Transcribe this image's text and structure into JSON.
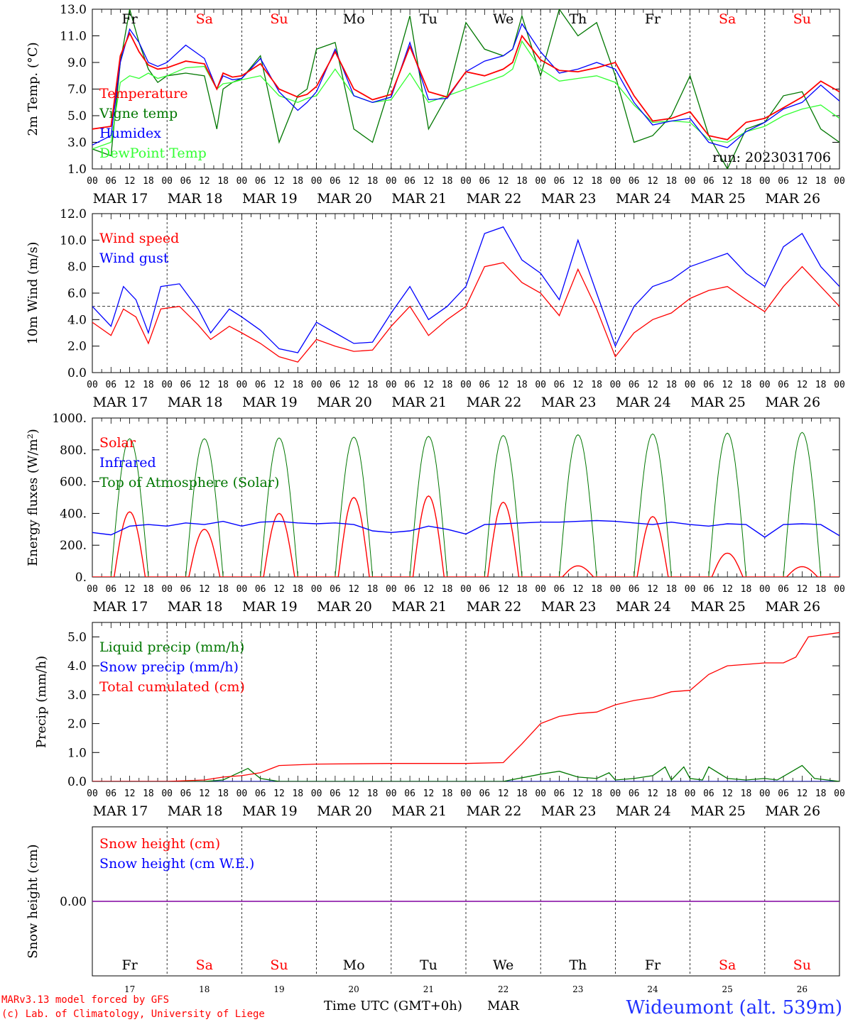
{
  "footer": {
    "model_line": "MARv3.13 model forced by GFS",
    "lab_line": "(c) Lab. of Climatology, University of Liege",
    "time_label": "Time UTC (GMT+0h)",
    "month": "MAR",
    "station": "Wideumont (alt. 539m)"
  },
  "days": [
    {
      "date": "MAR 17",
      "dom": "17",
      "weekday": "Fr",
      "weekend": false
    },
    {
      "date": "MAR 18",
      "dom": "18",
      "weekday": "Sa",
      "weekend": true
    },
    {
      "date": "MAR 19",
      "dom": "19",
      "weekday": "Su",
      "weekend": true
    },
    {
      "date": "MAR 20",
      "dom": "20",
      "weekday": "Mo",
      "weekend": false
    },
    {
      "date": "MAR 21",
      "dom": "21",
      "weekday": "Tu",
      "weekend": false
    },
    {
      "date": "MAR 22",
      "dom": "22",
      "weekday": "We",
      "weekend": false
    },
    {
      "date": "MAR 23",
      "dom": "23",
      "weekday": "Th",
      "weekend": false
    },
    {
      "date": "MAR 24",
      "dom": "24",
      "weekday": "Fr",
      "weekend": false
    },
    {
      "date": "MAR 25",
      "dom": "25",
      "weekday": "Sa",
      "weekend": true
    },
    {
      "date": "MAR 26",
      "dom": "26",
      "weekday": "Su",
      "weekend": true
    }
  ],
  "hour_ticks": [
    "00",
    "06",
    "12",
    "18"
  ],
  "end_tick": "00",
  "colors": {
    "red": "#ff0000",
    "green": "#007700",
    "blue": "#0000ff",
    "lime": "#33ff33",
    "purple": "#8000a0",
    "weekday": "#000000",
    "weekend": "#ff0000"
  },
  "chart_data": [
    {
      "type": "line",
      "ylabel": "2m Temp. (°C)",
      "ylim": [
        1.0,
        13.0
      ],
      "yticks": [
        "1.0",
        "3.0",
        "5.0",
        "7.0",
        "9.0",
        "11.0",
        "13.0"
      ],
      "run_label": "run: 2023031706",
      "x_unit": "hours since MAR 17 00 UTC",
      "series": [
        {
          "name": "Temperature",
          "color": "#ff0000",
          "x": [
            0,
            6,
            9,
            12,
            15,
            18,
            21,
            24,
            30,
            36,
            40,
            42,
            45,
            48,
            54,
            60,
            66,
            69,
            72,
            78,
            84,
            90,
            96,
            102,
            108,
            114,
            120,
            126,
            132,
            135,
            138,
            144,
            150,
            156,
            162,
            168,
            174,
            180,
            186,
            192,
            198,
            204,
            210,
            216,
            222,
            228,
            234,
            240
          ],
          "y": [
            4.0,
            4.2,
            9.5,
            11.2,
            9.8,
            8.8,
            8.5,
            8.6,
            9.1,
            8.9,
            7.0,
            8.2,
            7.9,
            8.0,
            8.9,
            7.0,
            6.4,
            6.6,
            7.2,
            9.8,
            7.0,
            6.2,
            6.6,
            10.2,
            6.8,
            6.4,
            8.3,
            8.0,
            8.5,
            9.0,
            11.0,
            9.2,
            8.4,
            8.3,
            8.6,
            9.0,
            6.5,
            4.6,
            4.8,
            5.3,
            3.5,
            3.2,
            4.5,
            4.8,
            5.6,
            6.4,
            7.6,
            6.8
          ]
        },
        {
          "name": "Vigne temp",
          "color": "#007700",
          "x": [
            0,
            6,
            9,
            12,
            15,
            18,
            21,
            24,
            30,
            36,
            40,
            42,
            45,
            48,
            54,
            60,
            66,
            69,
            72,
            78,
            84,
            90,
            96,
            102,
            108,
            114,
            120,
            126,
            132,
            135,
            138,
            144,
            150,
            156,
            162,
            168,
            174,
            180,
            186,
            192,
            198,
            204,
            210,
            216,
            222,
            228,
            234,
            240
          ],
          "y": [
            2.5,
            2.0,
            9.0,
            13.0,
            10.5,
            8.5,
            7.5,
            8.0,
            8.2,
            8.0,
            4.0,
            7.0,
            7.5,
            7.8,
            9.5,
            3.0,
            6.5,
            7.0,
            10.0,
            10.5,
            4.0,
            3.0,
            7.5,
            12.5,
            4.0,
            6.5,
            12.0,
            10.0,
            9.5,
            10.0,
            12.5,
            8.0,
            13.0,
            11.0,
            12.0,
            8.0,
            3.0,
            3.5,
            5.0,
            8.0,
            3.5,
            1.0,
            4.0,
            4.5,
            6.5,
            6.8,
            4.0,
            3.0
          ]
        },
        {
          "name": "Humidex",
          "color": "#0000ff",
          "x": [
            0,
            6,
            9,
            12,
            15,
            18,
            21,
            24,
            30,
            36,
            40,
            42,
            45,
            48,
            54,
            60,
            66,
            69,
            72,
            78,
            84,
            90,
            96,
            102,
            108,
            114,
            120,
            126,
            132,
            135,
            138,
            144,
            150,
            156,
            162,
            168,
            174,
            180,
            186,
            192,
            198,
            204,
            210,
            216,
            222,
            228,
            234,
            240
          ],
          "y": [
            2.8,
            3.5,
            9.0,
            11.5,
            10.5,
            9.0,
            8.7,
            9.0,
            10.3,
            9.3,
            7.0,
            8.0,
            7.7,
            7.8,
            9.3,
            6.8,
            5.4,
            6.0,
            6.8,
            10.0,
            6.5,
            6.0,
            6.4,
            10.5,
            6.2,
            6.3,
            8.3,
            9.1,
            9.5,
            10.0,
            11.9,
            9.8,
            8.2,
            8.5,
            9.0,
            8.5,
            6.0,
            4.3,
            4.6,
            4.8,
            3.0,
            2.6,
            3.8,
            4.5,
            5.5,
            6.0,
            7.3,
            6.1
          ]
        },
        {
          "name": "DewPoint Temp",
          "color": "#33ff33",
          "x": [
            0,
            6,
            9,
            12,
            15,
            18,
            21,
            24,
            30,
            36,
            40,
            42,
            45,
            48,
            54,
            60,
            66,
            69,
            72,
            78,
            84,
            90,
            96,
            102,
            108,
            114,
            120,
            126,
            132,
            135,
            138,
            144,
            150,
            156,
            162,
            168,
            174,
            180,
            186,
            192,
            198,
            204,
            210,
            216,
            222,
            228,
            234,
            240
          ],
          "y": [
            2.5,
            3.0,
            7.5,
            8.0,
            7.8,
            8.2,
            7.8,
            8.0,
            8.6,
            8.7,
            7.0,
            7.4,
            7.5,
            7.7,
            8.0,
            6.5,
            6.0,
            6.3,
            6.5,
            8.5,
            6.5,
            6.0,
            6.2,
            8.2,
            6.0,
            6.5,
            7.0,
            7.5,
            8.0,
            8.5,
            10.6,
            8.5,
            7.6,
            7.8,
            8.0,
            7.5,
            5.8,
            4.5,
            4.6,
            4.5,
            3.2,
            3.0,
            3.8,
            4.2,
            5.0,
            5.5,
            5.8,
            4.8
          ]
        }
      ]
    },
    {
      "type": "line",
      "ylabel": "10m Wind (m/s)",
      "ylim": [
        0.0,
        12.0
      ],
      "yticks": [
        "0.0",
        "2.0",
        "4.0",
        "6.0",
        "8.0",
        "10.0",
        "12.0"
      ],
      "ref_line": 5.0,
      "x_unit": "hours since MAR 17 00 UTC",
      "series": [
        {
          "name": "Wind speed",
          "color": "#ff0000",
          "x": [
            0,
            6,
            10,
            14,
            18,
            22,
            28,
            34,
            38,
            44,
            48,
            54,
            60,
            66,
            72,
            78,
            84,
            90,
            96,
            102,
            108,
            114,
            120,
            126,
            132,
            138,
            144,
            150,
            156,
            162,
            168,
            174,
            180,
            186,
            192,
            198,
            204,
            210,
            216,
            222,
            228,
            234,
            240
          ],
          "y": [
            3.8,
            2.8,
            4.8,
            4.2,
            2.2,
            4.8,
            5.0,
            3.6,
            2.5,
            3.5,
            3.0,
            2.2,
            1.2,
            0.8,
            2.5,
            2.0,
            1.6,
            1.7,
            3.5,
            5.0,
            2.8,
            4.0,
            5.0,
            8.0,
            8.3,
            6.8,
            6.0,
            4.3,
            7.8,
            4.8,
            1.2,
            3.0,
            4.0,
            4.5,
            5.6,
            6.2,
            6.5,
            5.5,
            4.6,
            6.5,
            8.0,
            6.5,
            5.0
          ]
        },
        {
          "name": "Wind gust",
          "color": "#0000ff",
          "x": [
            0,
            6,
            10,
            14,
            18,
            22,
            28,
            34,
            38,
            44,
            48,
            54,
            60,
            66,
            72,
            78,
            84,
            90,
            96,
            102,
            108,
            114,
            120,
            126,
            132,
            138,
            144,
            150,
            156,
            162,
            168,
            174,
            180,
            186,
            192,
            198,
            204,
            210,
            216,
            222,
            228,
            234,
            240
          ],
          "y": [
            5.0,
            3.5,
            6.5,
            5.5,
            3.0,
            6.5,
            6.7,
            4.8,
            3.0,
            4.8,
            4.2,
            3.2,
            1.8,
            1.5,
            3.8,
            3.0,
            2.2,
            2.3,
            4.5,
            6.5,
            4.0,
            5.0,
            6.5,
            10.5,
            11.0,
            8.5,
            7.5,
            5.5,
            10.0,
            6.0,
            2.0,
            5.0,
            6.5,
            7.0,
            8.0,
            8.5,
            9.0,
            7.5,
            6.5,
            9.5,
            10.5,
            8.0,
            6.5
          ]
        }
      ]
    },
    {
      "type": "line",
      "ylabel": "Energy fluxes (W/m²)",
      "ylim": [
        0,
        1000
      ],
      "yticks": [
        "0.",
        "200.",
        "400.",
        "600.",
        "800.",
        "1000."
      ],
      "x_unit": "hours since MAR 17 00 UTC",
      "solar_daily_peaks": [
        410,
        300,
        400,
        500,
        510,
        470,
        70,
        380,
        150,
        65
      ],
      "toa_daily_peaks": [
        870,
        870,
        875,
        880,
        885,
        890,
        895,
        900,
        905,
        910
      ],
      "series": [
        {
          "name": "Solar",
          "color": "#ff0000"
        },
        {
          "name": "Infrared",
          "color": "#0000ff",
          "x": [
            0,
            6,
            12,
            18,
            24,
            30,
            36,
            42,
            48,
            54,
            60,
            66,
            72,
            78,
            84,
            90,
            96,
            102,
            108,
            114,
            120,
            126,
            132,
            138,
            144,
            150,
            156,
            162,
            168,
            174,
            180,
            186,
            192,
            198,
            204,
            210,
            216,
            222,
            228,
            234,
            240
          ],
          "y": [
            280,
            265,
            320,
            330,
            320,
            340,
            330,
            350,
            320,
            345,
            350,
            340,
            335,
            340,
            330,
            290,
            280,
            290,
            320,
            300,
            270,
            330,
            335,
            340,
            345,
            345,
            350,
            355,
            350,
            340,
            330,
            345,
            330,
            320,
            335,
            330,
            250,
            330,
            335,
            330,
            260
          ]
        },
        {
          "name": "Top of Atmosphere (Solar)",
          "color": "#007700"
        }
      ]
    },
    {
      "type": "line",
      "ylabel": "Precip (mm/h)",
      "ylim": [
        0.0,
        5.5
      ],
      "yticks": [
        "0.0",
        "1.0",
        "2.0",
        "3.0",
        "4.0",
        "5.0"
      ],
      "x_unit": "hours since MAR 17 00 UTC",
      "series": [
        {
          "name": "Liquid precip (mm/h)",
          "color": "#007700",
          "x": [
            0,
            24,
            36,
            42,
            50,
            54,
            60,
            72,
            120,
            132,
            144,
            150,
            156,
            162,
            166,
            168,
            174,
            180,
            184,
            186,
            190,
            192,
            196,
            198,
            204,
            210,
            216,
            220,
            224,
            228,
            232,
            240
          ],
          "y": [
            0,
            0,
            0,
            0.05,
            0.45,
            0.1,
            0,
            0,
            0,
            0,
            0.25,
            0.35,
            0.15,
            0.1,
            0.3,
            0.05,
            0.1,
            0.2,
            0.5,
            0.05,
            0.5,
            0.1,
            0.05,
            0.5,
            0.1,
            0.05,
            0.1,
            0.05,
            0.3,
            0.55,
            0.1,
            0
          ]
        },
        {
          "name": "Snow precip (mm/h)",
          "color": "#0000ff",
          "x": [
            0,
            240
          ],
          "y": [
            0,
            0
          ]
        },
        {
          "name": "Total cumulated (cm)",
          "color": "#ff0000",
          "x": [
            0,
            24,
            36,
            42,
            48,
            54,
            60,
            72,
            96,
            120,
            132,
            138,
            144,
            150,
            156,
            162,
            168,
            174,
            180,
            186,
            192,
            198,
            204,
            210,
            216,
            222,
            226,
            230,
            240
          ],
          "y": [
            0,
            0,
            0.05,
            0.15,
            0.2,
            0.3,
            0.55,
            0.6,
            0.62,
            0.62,
            0.65,
            1.3,
            2.0,
            2.25,
            2.35,
            2.4,
            2.65,
            2.8,
            2.9,
            3.1,
            3.15,
            3.7,
            4.0,
            4.05,
            4.1,
            4.1,
            4.3,
            5.0,
            5.15
          ]
        }
      ]
    },
    {
      "type": "line",
      "ylabel": "Snow height (cm)",
      "yticks": [
        "0.00"
      ],
      "x_unit": "hours since MAR 17 00 UTC",
      "series": [
        {
          "name": "Snow height (cm)",
          "color": "#ff0000",
          "x": [
            0,
            240
          ],
          "y": [
            0,
            0
          ]
        },
        {
          "name": "Snow height (cm W.E.)",
          "color": "#0000ff",
          "x": [
            0,
            240
          ],
          "y": [
            0,
            0
          ]
        }
      ]
    }
  ]
}
